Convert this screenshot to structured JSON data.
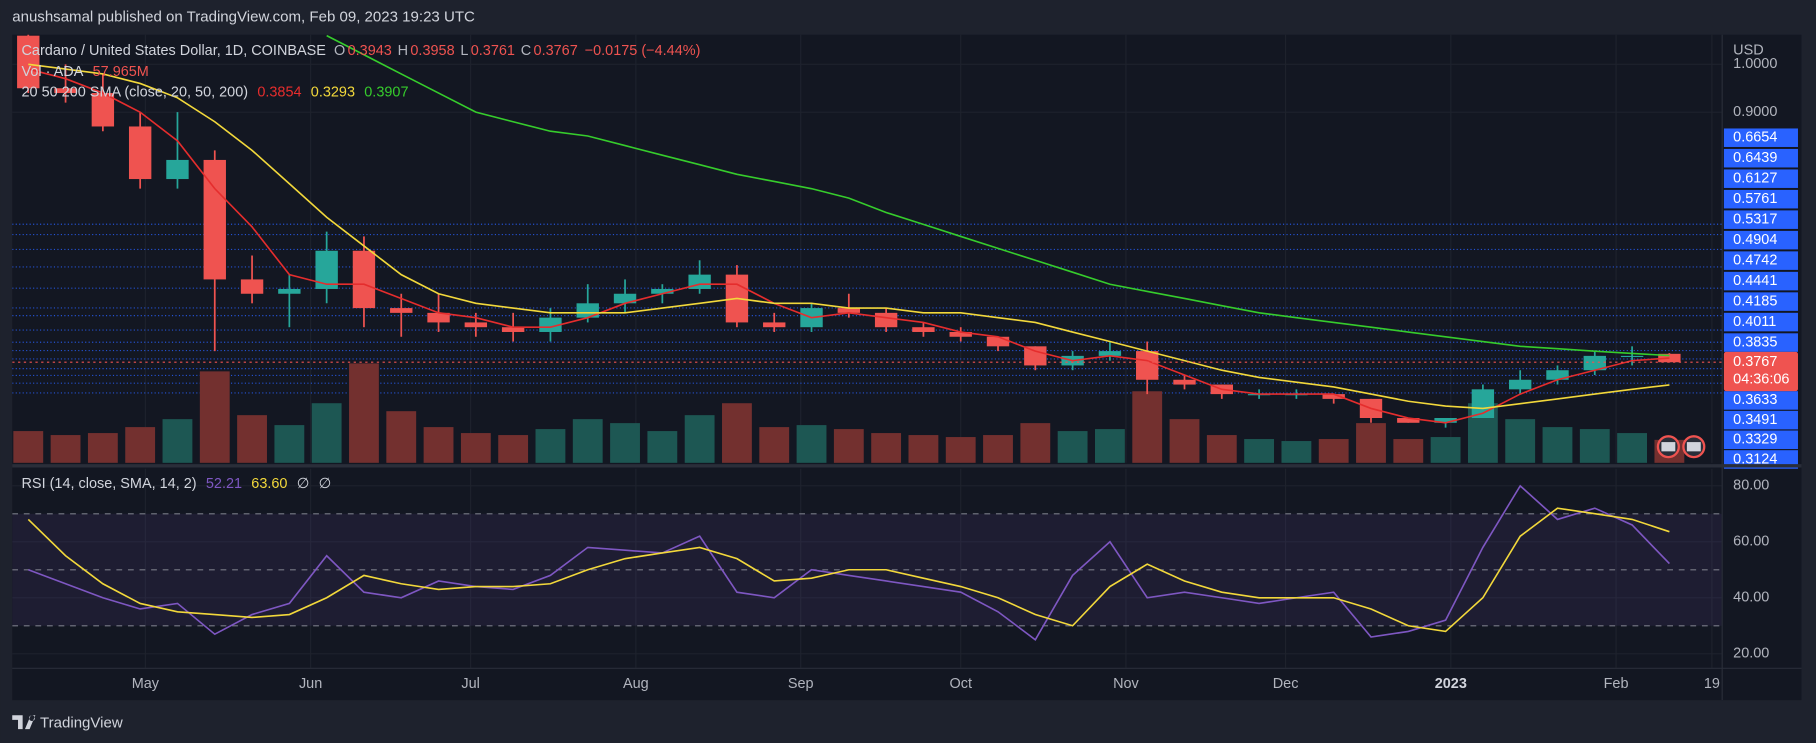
{
  "header": {
    "publisher": "anushsamal published on TradingView.com, Feb 09, 2023 19:23 UTC"
  },
  "footer": {
    "brand": "TradingView"
  },
  "chart_data": [
    {
      "type": "candlestick",
      "title": "Cardano / United States Dollar, 1D, COINBASE",
      "ohlc_labels": [
        "O",
        "H",
        "L",
        "C"
      ],
      "change": "−0.0175 (−4.44%)",
      "candles": {
        "open": [
          1.06,
          0.95,
          0.94,
          0.87,
          0.76,
          0.8,
          0.55,
          0.52,
          0.53,
          0.61,
          0.49,
          0.48,
          0.46,
          0.45,
          0.44,
          0.47,
          0.5,
          0.52,
          0.53,
          0.56,
          0.46,
          0.45,
          0.49,
          0.48,
          0.45,
          0.44,
          0.43,
          0.41,
          0.37,
          0.39,
          0.4,
          0.34,
          0.33,
          0.31,
          0.31,
          0.31,
          0.3,
          0.26,
          0.25,
          0.26,
          0.32,
          0.34,
          0.36,
          0.39,
          0.3943
        ],
        "high": [
          1.08,
          1.0,
          0.98,
          0.9,
          0.9,
          0.82,
          0.6,
          0.56,
          0.65,
          0.64,
          0.52,
          0.52,
          0.48,
          0.48,
          0.49,
          0.54,
          0.55,
          0.54,
          0.59,
          0.58,
          0.48,
          0.5,
          0.52,
          0.49,
          0.46,
          0.45,
          0.43,
          0.41,
          0.4,
          0.42,
          0.42,
          0.35,
          0.33,
          0.32,
          0.32,
          0.31,
          0.3,
          0.26,
          0.26,
          0.33,
          0.36,
          0.37,
          0.4,
          0.41,
          0.3958
        ],
        "low": [
          0.94,
          0.92,
          0.86,
          0.74,
          0.74,
          0.4,
          0.5,
          0.45,
          0.5,
          0.45,
          0.43,
          0.44,
          0.43,
          0.42,
          0.42,
          0.46,
          0.48,
          0.5,
          0.52,
          0.45,
          0.44,
          0.44,
          0.47,
          0.44,
          0.43,
          0.42,
          0.4,
          0.36,
          0.36,
          0.38,
          0.31,
          0.32,
          0.3,
          0.3,
          0.3,
          0.29,
          0.25,
          0.25,
          0.24,
          0.26,
          0.31,
          0.33,
          0.35,
          0.37,
          0.3761
        ],
        "close": [
          0.95,
          0.94,
          0.87,
          0.76,
          0.8,
          0.55,
          0.52,
          0.53,
          0.61,
          0.49,
          0.48,
          0.46,
          0.45,
          0.44,
          0.47,
          0.5,
          0.52,
          0.53,
          0.56,
          0.46,
          0.45,
          0.49,
          0.48,
          0.45,
          0.44,
          0.43,
          0.41,
          0.37,
          0.39,
          0.4,
          0.34,
          0.33,
          0.31,
          0.31,
          0.31,
          0.3,
          0.26,
          0.25,
          0.26,
          0.32,
          0.34,
          0.36,
          0.39,
          0.39,
          0.3767
        ]
      },
      "up_color": "#26a69a",
      "down_color": "#ef5350",
      "volume": {
        "name": "Vol · ADA",
        "values": [
          80,
          70,
          75,
          90,
          110,
          230,
          120,
          95,
          150,
          250,
          130,
          90,
          75,
          70,
          85,
          110,
          100,
          80,
          120,
          150,
          90,
          95,
          85,
          75,
          70,
          65,
          70,
          100,
          80,
          85,
          180,
          110,
          70,
          60,
          55,
          60,
          100,
          60,
          65,
          150,
          110,
          90,
          85,
          75,
          57.965
        ],
        "value_labels": [
          null,
          null,
          null,
          null,
          null,
          null,
          null,
          null,
          null,
          null,
          null,
          null,
          null,
          null,
          null,
          null,
          null,
          null,
          null,
          null,
          null,
          null,
          null,
          null,
          null,
          null,
          null,
          null,
          null,
          null,
          null,
          null,
          null,
          null,
          null,
          null,
          null,
          null,
          null,
          null,
          null,
          null,
          null,
          null,
          "57.965M"
        ],
        "ylim": [
          0,
          250
        ],
        "up_color": "#1d5753",
        "down_color": "#73302f"
      },
      "indicator": "20 50 200 SMA (close, 20, 50, 200)",
      "series": [
        {
          "color": "#e52d2d",
          "values": [
            0.99,
            0.97,
            0.94,
            0.9,
            0.84,
            0.74,
            0.66,
            0.56,
            0.54,
            0.54,
            0.51,
            0.48,
            0.47,
            0.45,
            0.45,
            0.47,
            0.5,
            0.52,
            0.54,
            0.54,
            0.5,
            0.47,
            0.48,
            0.47,
            0.46,
            0.44,
            0.43,
            0.4,
            0.38,
            0.39,
            0.38,
            0.35,
            0.32,
            0.31,
            0.31,
            0.31,
            0.28,
            0.26,
            0.25,
            0.27,
            0.31,
            0.34,
            0.36,
            0.38,
            0.3854
          ]
        },
        {
          "color": "#f2d83b",
          "values": [
            1.0,
            0.99,
            0.98,
            0.96,
            0.93,
            0.88,
            0.82,
            0.75,
            0.68,
            0.62,
            0.56,
            0.52,
            0.5,
            0.49,
            0.48,
            0.48,
            0.48,
            0.49,
            0.5,
            0.51,
            0.5,
            0.5,
            0.49,
            0.49,
            0.48,
            0.48,
            0.47,
            0.46,
            0.44,
            0.42,
            0.4,
            0.38,
            0.36,
            0.345,
            0.335,
            0.325,
            0.31,
            0.295,
            0.285,
            0.28,
            0.29,
            0.3,
            0.31,
            0.32,
            0.3293
          ]
        },
        {
          "color": "#36cc2c",
          "values": [
            null,
            null,
            null,
            null,
            null,
            null,
            null,
            null,
            1.06,
            1.02,
            0.98,
            0.94,
            0.9,
            0.88,
            0.86,
            0.85,
            0.83,
            0.81,
            0.79,
            0.77,
            0.755,
            0.74,
            0.72,
            0.69,
            0.665,
            0.64,
            0.615,
            0.59,
            0.565,
            0.54,
            0.525,
            0.51,
            0.495,
            0.48,
            0.47,
            0.46,
            0.45,
            0.44,
            0.43,
            0.42,
            0.41,
            0.405,
            0.4,
            0.395,
            0.3907
          ]
        }
      ],
      "levels": [
        0.6654,
        0.6439,
        0.6127,
        0.5761,
        0.5317,
        0.4904,
        0.4742,
        0.4441,
        0.4185,
        0.4011,
        0.3835,
        0.3633,
        0.3491,
        0.3329,
        0.3124
      ],
      "level_color": "#2962ff",
      "axis_label": "USD",
      "yticks": [
        {
          "value": 0.9,
          "label": "0.9000"
        },
        {
          "value": 1,
          "label": "1.0000"
        }
      ],
      "ylim": [
        0.166,
        1.062
      ],
      "countdown": "04:36:06",
      "xticks": [
        {
          "value": 3.14,
          "label": "May"
        },
        {
          "value": 7.57,
          "label": "Jun"
        },
        {
          "value": 11.86,
          "label": "Jul"
        },
        {
          "value": 16.29,
          "label": "Aug"
        },
        {
          "value": 20.71,
          "label": "Sep"
        },
        {
          "value": 25,
          "label": "Oct"
        },
        {
          "value": 29.43,
          "label": "Nov"
        },
        {
          "value": 33.71,
          "label": "Dec"
        },
        {
          "value": 38.14,
          "label": "2023"
        },
        {
          "value": 42.57,
          "label": "Feb"
        },
        {
          "value": 45.14,
          "label": "19"
        }
      ],
      "xlim": [
        -0.43,
        45.4
      ],
      "grid": true
    },
    {
      "type": "line",
      "title": "RSI (14, close, SMA, 14, 2)",
      "series": [
        {
          "color": "#7e57c2",
          "values": [
            50,
            45,
            40,
            36,
            38,
            27,
            34,
            38,
            55,
            42,
            40,
            46,
            44,
            43,
            48,
            58,
            57,
            56,
            62,
            42,
            40,
            50,
            48,
            46,
            44,
            42,
            35,
            25,
            48,
            60,
            40,
            42,
            40,
            38,
            40,
            42,
            26,
            28,
            32,
            58,
            80,
            68,
            72,
            66,
            52.21
          ]
        },
        {
          "color": "#f2d83b",
          "values": [
            68,
            55,
            45,
            38,
            35,
            34,
            33,
            34,
            40,
            48,
            45,
            43,
            44,
            44,
            45,
            50,
            54,
            56,
            58,
            54,
            46,
            47,
            50,
            50,
            47,
            44,
            40,
            34,
            30,
            44,
            52,
            46,
            42,
            40,
            40,
            40,
            36,
            30,
            28,
            40,
            62,
            72,
            70,
            68,
            63.6
          ],
          "value_labels": [
            null,
            null,
            null,
            null,
            null,
            null,
            null,
            null,
            null,
            null,
            null,
            null,
            null,
            null,
            null,
            null,
            null,
            null,
            null,
            null,
            null,
            null,
            null,
            null,
            null,
            null,
            null,
            null,
            null,
            null,
            null,
            null,
            null,
            null,
            null,
            null,
            null,
            null,
            null,
            null,
            null,
            null,
            null,
            null,
            "63.60"
          ]
        }
      ],
      "extras": [
        "∅",
        "∅"
      ],
      "levels": [
        70,
        50,
        30
      ],
      "band_color": "#7e57c2",
      "ylim": [
        15,
        86.1
      ],
      "yticks": [
        {
          "value": 20,
          "label": "20.00"
        },
        {
          "value": 40,
          "label": "40.00"
        },
        {
          "value": 60,
          "label": "60.00"
        },
        {
          "value": 80,
          "label": "80.00"
        }
      ]
    }
  ]
}
